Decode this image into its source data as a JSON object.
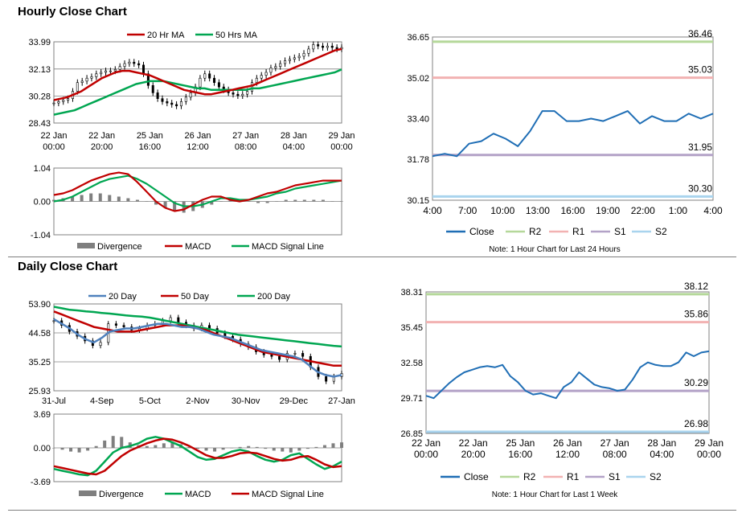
{
  "sections": {
    "hourly_title": "Hourly Close Chart",
    "daily_title": "Daily Close Chart"
  },
  "colors": {
    "ma_red": "#c00000",
    "ma_green": "#00a651",
    "ma_blue": "#4f81bd",
    "close_blue": "#1f6eb5",
    "r2": "#b5d89a",
    "r1": "#f2b2b2",
    "s1": "#b3a2c7",
    "s2": "#a9d4ee",
    "candle": "#000000",
    "divergence": "#7f7f7f"
  },
  "chart_data": [
    {
      "id": "hourly_price",
      "type": "candlestick",
      "title": "",
      "legend": [
        "20 Hr MA",
        "50 Hrs MA"
      ],
      "legend_position": "top",
      "y_ticks": [
        "33.99",
        "32.13",
        "30.28",
        "28.43"
      ],
      "ylim": [
        28.43,
        33.99
      ],
      "x_ticks": [
        [
          "22 Jan",
          "00:00"
        ],
        [
          "22 Jan",
          "20:00"
        ],
        [
          "25 Jan",
          "16:00"
        ],
        [
          "26 Jan",
          "12:00"
        ],
        [
          "27 Jan",
          "08:00"
        ],
        [
          "28 Jan",
          "04:00"
        ],
        [
          "29 Jan",
          "00:00"
        ]
      ],
      "close": [
        29.8,
        29.9,
        30.0,
        30.1,
        30.6,
        31.2,
        31.3,
        31.5,
        31.6,
        31.8,
        31.9,
        32.0,
        32.0,
        32.1,
        32.3,
        32.5,
        32.6,
        32.5,
        32.4,
        31.8,
        31.0,
        30.5,
        30.1,
        29.9,
        29.8,
        29.7,
        29.6,
        29.9,
        30.2,
        30.5,
        30.9,
        31.5,
        31.8,
        31.5,
        31.2,
        30.9,
        30.7,
        30.5,
        30.4,
        30.3,
        30.4,
        30.6,
        31.2,
        31.5,
        31.7,
        31.9,
        32.2,
        32.3,
        32.5,
        32.7,
        32.8,
        32.9,
        33.0,
        33.2,
        33.5,
        33.8,
        33.7,
        33.6,
        33.7,
        33.6,
        33.5,
        33.6
      ],
      "series": [
        {
          "name": "20 Hr MA",
          "values": [
            30.0,
            30.1,
            30.2,
            30.4,
            30.6,
            30.9,
            31.2,
            31.5,
            31.7,
            31.9,
            32.0,
            32.0,
            31.9,
            31.8,
            31.7,
            31.5,
            31.3,
            31.1,
            30.9,
            30.7,
            30.6,
            30.5,
            30.4,
            30.4,
            30.5,
            30.6,
            30.7,
            30.8,
            30.9,
            31.0,
            31.2,
            31.4,
            31.6,
            31.8,
            32.0,
            32.2,
            32.4,
            32.6,
            32.8,
            33.0,
            33.2,
            33.4,
            33.5
          ]
        },
        {
          "name": "50 Hrs MA",
          "values": [
            29.0,
            29.1,
            29.2,
            29.3,
            29.5,
            29.7,
            29.9,
            30.1,
            30.3,
            30.5,
            30.7,
            30.9,
            31.1,
            31.2,
            31.3,
            31.3,
            31.3,
            31.2,
            31.1,
            31.0,
            30.9,
            30.8,
            30.8,
            30.7,
            30.7,
            30.7,
            30.7,
            30.7,
            30.7,
            30.8,
            30.8,
            30.9,
            31.0,
            31.1,
            31.2,
            31.3,
            31.4,
            31.5,
            31.6,
            31.7,
            31.8,
            31.9,
            32.1
          ]
        }
      ]
    },
    {
      "id": "hourly_macd",
      "type": "line",
      "legend": [
        "Divergence",
        "MACD",
        "MACD Signal Line"
      ],
      "y_ticks": [
        "1.04",
        "0.00",
        "-1.04"
      ],
      "ylim": [
        -1.04,
        1.04
      ],
      "series": [
        {
          "name": "Divergence",
          "values": [
            0.05,
            0.1,
            0.15,
            0.2,
            0.25,
            0.25,
            0.2,
            0.15,
            0.1,
            0.05,
            0.0,
            -0.1,
            -0.2,
            -0.3,
            -0.35,
            -0.3,
            -0.2,
            -0.1,
            0.0,
            0.05,
            0.05,
            0.0,
            -0.05,
            -0.05,
            0.0,
            0.05,
            0.05,
            0.05,
            0.05,
            0.05,
            0.0,
            0.0
          ]
        },
        {
          "name": "MACD",
          "values": [
            0.2,
            0.25,
            0.35,
            0.5,
            0.65,
            0.75,
            0.85,
            0.9,
            0.85,
            0.6,
            0.3,
            0.0,
            -0.2,
            -0.3,
            -0.25,
            -0.1,
            0.05,
            0.15,
            0.15,
            0.05,
            0.0,
            0.05,
            0.15,
            0.25,
            0.3,
            0.4,
            0.5,
            0.55,
            0.6,
            0.65,
            0.65,
            0.65
          ]
        },
        {
          "name": "MACD Signal Line",
          "values": [
            0.0,
            0.05,
            0.15,
            0.3,
            0.45,
            0.6,
            0.7,
            0.75,
            0.8,
            0.7,
            0.55,
            0.35,
            0.15,
            -0.05,
            -0.15,
            -0.15,
            -0.1,
            0.0,
            0.1,
            0.1,
            0.05,
            0.05,
            0.1,
            0.15,
            0.25,
            0.3,
            0.4,
            0.45,
            0.5,
            0.55,
            0.6,
            0.65
          ]
        }
      ]
    },
    {
      "id": "hourly_pivots",
      "type": "line",
      "legend": [
        "Close",
        "R2",
        "R1",
        "S1",
        "S2"
      ],
      "note": "Note: 1 Hour Chart for Last 24 Hours",
      "y_ticks": [
        "36.65",
        "35.02",
        "33.40",
        "31.78",
        "30.15"
      ],
      "ylim": [
        30.15,
        36.65
      ],
      "x_ticks": [
        "4:00",
        "7:00",
        "10:00",
        "13:00",
        "16:00",
        "19:00",
        "22:00",
        "1:00",
        "4:00"
      ],
      "levels": [
        {
          "name": "R2",
          "value": 36.46,
          "label": "36.46"
        },
        {
          "name": "R1",
          "value": 35.03,
          "label": "35.03"
        },
        {
          "name": "S1",
          "value": 31.95,
          "label": "31.95"
        },
        {
          "name": "S2",
          "value": 30.3,
          "label": "30.30"
        }
      ],
      "close": [
        31.9,
        32.0,
        31.9,
        32.4,
        32.5,
        32.8,
        32.6,
        32.3,
        32.9,
        33.7,
        33.7,
        33.3,
        33.3,
        33.4,
        33.3,
        33.5,
        33.7,
        33.2,
        33.5,
        33.3,
        33.3,
        33.6,
        33.4,
        33.6
      ]
    },
    {
      "id": "daily_price",
      "type": "candlestick",
      "legend": [
        "20 Day",
        "50 Day",
        "200 Day"
      ],
      "legend_position": "top",
      "y_ticks": [
        "53.90",
        "44.58",
        "35.25",
        "25.93"
      ],
      "ylim": [
        25.93,
        53.9
      ],
      "x_ticks": [
        "31-Jul",
        "4-Sep",
        "5-Oct",
        "2-Nov",
        "30-Nov",
        "29-Dec",
        "27-Jan"
      ],
      "close": [
        48.5,
        47.0,
        45.0,
        43.5,
        42.0,
        40.5,
        41.5,
        47.5,
        47.0,
        46.5,
        45.5,
        46.0,
        47.0,
        47.5,
        48.5,
        49.5,
        48.0,
        47.0,
        46.0,
        47.0,
        46.0,
        44.5,
        43.5,
        42.5,
        41.0,
        40.0,
        38.5,
        37.5,
        37.0,
        36.0,
        38.0,
        38.0,
        37.0,
        33.5,
        30.5,
        29.0,
        30.5,
        31.5
      ],
      "series": [
        {
          "name": "20 Day",
          "values": [
            49.0,
            47.5,
            46.0,
            44.0,
            42.5,
            41.5,
            43.0,
            45.0,
            45.5,
            46.0,
            46.0,
            46.5,
            47.0,
            47.5,
            47.5,
            47.0,
            46.5,
            46.5,
            46.0,
            45.0,
            44.0,
            43.5,
            43.0,
            42.0,
            41.0,
            40.0,
            39.0,
            38.5,
            38.0,
            37.5,
            37.0,
            36.0,
            34.0,
            32.0,
            31.0,
            30.5,
            31.0
          ]
        },
        {
          "name": "50 Day",
          "values": [
            51.5,
            50.5,
            49.5,
            48.5,
            47.5,
            46.5,
            46.0,
            45.5,
            45.0,
            45.0,
            45.0,
            45.5,
            46.0,
            46.5,
            47.0,
            47.0,
            47.0,
            46.5,
            46.0,
            45.5,
            44.5,
            43.5,
            42.5,
            41.5,
            40.5,
            39.5,
            38.5,
            38.0,
            37.5,
            37.0,
            36.5,
            36.0,
            35.5,
            35.0,
            34.5,
            34.0,
            34.0
          ]
        },
        {
          "name": "200 Day",
          "values": [
            53.0,
            52.5,
            52.0,
            51.8,
            51.5,
            51.3,
            51.0,
            50.8,
            50.5,
            50.2,
            50.0,
            49.8,
            49.5,
            49.0,
            48.5,
            48.0,
            47.5,
            47.0,
            46.5,
            46.0,
            45.5,
            45.0,
            44.5,
            44.0,
            43.7,
            43.4,
            43.1,
            42.8,
            42.5,
            42.2,
            41.9,
            41.6,
            41.3,
            41.0,
            40.7,
            40.4,
            40.2
          ]
        }
      ]
    },
    {
      "id": "daily_macd",
      "type": "line",
      "legend": [
        "Divergence",
        "MACD",
        "MACD Signal Line"
      ],
      "y_ticks": [
        "3.69",
        "0.00",
        "-3.69"
      ],
      "ylim": [
        -3.69,
        3.69
      ],
      "series": [
        {
          "name": "Divergence",
          "values": [
            0.0,
            -0.2,
            -0.4,
            -0.5,
            -0.3,
            0.2,
            0.8,
            1.3,
            1.2,
            0.6,
            0.3,
            0.2,
            0.3,
            0.5,
            0.6,
            0.4,
            0.1,
            -0.1,
            -0.3,
            -0.4,
            -0.2,
            0.0,
            0.1,
            0.2,
            0.1,
            -0.1,
            -0.3,
            -0.4,
            -0.5,
            -0.3,
            -0.1,
            0.1,
            0.3,
            0.5,
            0.6
          ]
        },
        {
          "name": "MACD",
          "values": [
            -2.3,
            -2.5,
            -2.7,
            -2.9,
            -3.0,
            -2.5,
            -1.5,
            -0.5,
            0.0,
            0.2,
            0.5,
            1.0,
            1.2,
            1.0,
            0.6,
            0.2,
            -0.4,
            -1.0,
            -1.3,
            -1.2,
            -0.8,
            -0.4,
            -0.2,
            -0.4,
            -0.9,
            -1.3,
            -1.5,
            -1.3,
            -0.8,
            -0.6,
            -1.2,
            -1.8,
            -2.3,
            -2.0,
            -1.5
          ]
        },
        {
          "name": "MACD Signal Line",
          "values": [
            -2.0,
            -2.2,
            -2.4,
            -2.6,
            -2.8,
            -2.9,
            -2.5,
            -1.7,
            -0.9,
            -0.3,
            0.1,
            0.5,
            0.8,
            1.0,
            0.9,
            0.6,
            0.2,
            -0.3,
            -0.8,
            -1.1,
            -1.1,
            -0.9,
            -0.6,
            -0.5,
            -0.6,
            -0.9,
            -1.2,
            -1.4,
            -1.3,
            -1.0,
            -0.9,
            -1.3,
            -1.8,
            -2.1,
            -2.0
          ]
        }
      ]
    },
    {
      "id": "daily_pivots",
      "type": "line",
      "legend": [
        "Close",
        "R2",
        "R1",
        "S1",
        "S2"
      ],
      "note": "Note: 1 Hour Chart for Last 1 Week",
      "y_ticks": [
        "38.31",
        "35.45",
        "32.58",
        "29.71",
        "26.85"
      ],
      "ylim": [
        26.85,
        38.31
      ],
      "x_ticks": [
        [
          "22 Jan",
          "00:00"
        ],
        [
          "22 Jan",
          "20:00"
        ],
        [
          "25 Jan",
          "16:00"
        ],
        [
          "26 Jan",
          "12:00"
        ],
        [
          "27 Jan",
          "08:00"
        ],
        [
          "28 Jan",
          "04:00"
        ],
        [
          "29 Jan",
          "00:00"
        ]
      ],
      "levels": [
        {
          "name": "R2",
          "value": 38.12,
          "label": "38.12"
        },
        {
          "name": "R1",
          "value": 35.86,
          "label": "35.86"
        },
        {
          "name": "S1",
          "value": 30.29,
          "label": "30.29"
        },
        {
          "name": "S2",
          "value": 26.98,
          "label": "26.98"
        }
      ],
      "close": [
        29.9,
        29.7,
        30.3,
        30.9,
        31.4,
        31.8,
        32.0,
        32.2,
        32.3,
        32.2,
        32.4,
        31.5,
        31.0,
        30.3,
        30.0,
        30.1,
        29.9,
        29.7,
        30.6,
        31.0,
        31.8,
        31.3,
        30.8,
        30.6,
        30.5,
        30.3,
        30.4,
        31.2,
        32.2,
        32.6,
        32.4,
        32.3,
        32.3,
        32.6,
        33.4,
        33.1,
        33.4,
        33.5
      ]
    }
  ]
}
